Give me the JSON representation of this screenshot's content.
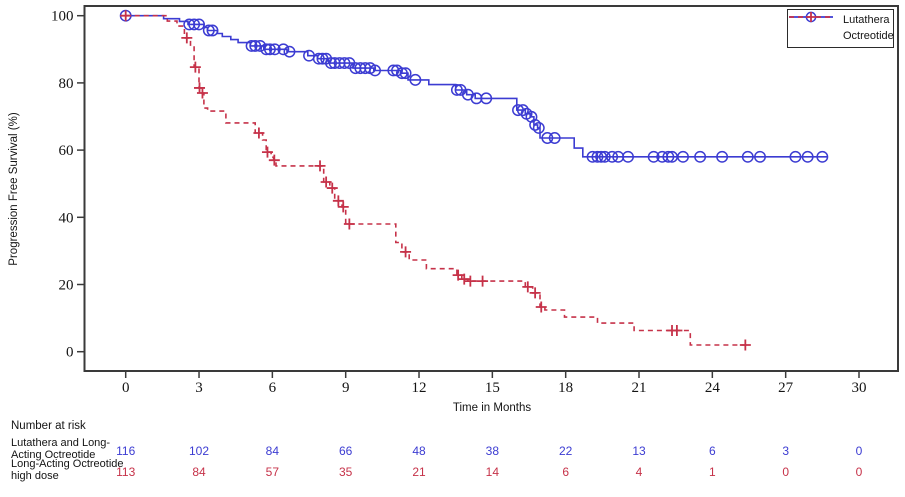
{
  "chart_data": {
    "type": "line",
    "subtype": "kaplan-meier-step",
    "title": "",
    "xlabel": "Time in Months",
    "ylabel": "Progression Free Survival (%)",
    "xlim": [
      0,
      30
    ],
    "ylim": [
      0,
      100
    ],
    "xticks": [
      0,
      3,
      6,
      9,
      12,
      15,
      18,
      21,
      24,
      27,
      30
    ],
    "yticks": [
      0,
      20,
      40,
      60,
      80,
      100
    ],
    "grid": false,
    "legend_position": "top-right",
    "frame_color": "#3a3a3a",
    "text_color": "#141414",
    "series": [
      {
        "name": "Lutathera",
        "color": "#3c3cd2",
        "line_style": "solid",
        "marker": "circle",
        "end_time": 28.7,
        "steps": [
          [
            0,
            100
          ],
          [
            1.55,
            99.1
          ],
          [
            2.2,
            98.3
          ],
          [
            2.55,
            97.4
          ],
          [
            3.2,
            96.5
          ],
          [
            3.35,
            95.6
          ],
          [
            3.75,
            94.7
          ],
          [
            3.95,
            93.8
          ],
          [
            4.3,
            92.9
          ],
          [
            4.6,
            92.0
          ],
          [
            5.1,
            91.0
          ],
          [
            5.65,
            90.0
          ],
          [
            6.6,
            89.3
          ],
          [
            7.45,
            88.1
          ],
          [
            7.85,
            87.2
          ],
          [
            8.3,
            85.9
          ],
          [
            9.3,
            84.4
          ],
          [
            10.15,
            83.7
          ],
          [
            11.25,
            82.9
          ],
          [
            11.55,
            80.9
          ],
          [
            12.4,
            79.5
          ],
          [
            13.5,
            77.9
          ],
          [
            13.95,
            76.5
          ],
          [
            14.3,
            75.4
          ],
          [
            16.0,
            71.9
          ],
          [
            16.35,
            70.8
          ],
          [
            16.55,
            69.9
          ],
          [
            16.7,
            67.5
          ],
          [
            16.85,
            66.6
          ],
          [
            16.95,
            63.6
          ],
          [
            18.35,
            60.6
          ],
          [
            18.7,
            58.0
          ]
        ],
        "censors": [
          [
            0,
            100
          ],
          [
            2.6,
            97.4
          ],
          [
            2.8,
            97.4
          ],
          [
            3.0,
            97.4
          ],
          [
            3.4,
            95.6
          ],
          [
            3.55,
            95.6
          ],
          [
            5.15,
            91.0
          ],
          [
            5.3,
            91.0
          ],
          [
            5.5,
            91.0
          ],
          [
            5.75,
            90.0
          ],
          [
            5.9,
            90.0
          ],
          [
            6.1,
            90.0
          ],
          [
            6.45,
            90.0
          ],
          [
            6.7,
            89.3
          ],
          [
            7.5,
            88.1
          ],
          [
            7.9,
            87.2
          ],
          [
            8.05,
            87.2
          ],
          [
            8.2,
            87.2
          ],
          [
            8.4,
            85.9
          ],
          [
            8.55,
            85.9
          ],
          [
            8.75,
            85.9
          ],
          [
            8.95,
            85.9
          ],
          [
            9.15,
            85.9
          ],
          [
            9.4,
            84.4
          ],
          [
            9.6,
            84.4
          ],
          [
            9.8,
            84.4
          ],
          [
            10.0,
            84.4
          ],
          [
            10.2,
            83.7
          ],
          [
            10.95,
            83.7
          ],
          [
            11.1,
            83.7
          ],
          [
            11.3,
            82.9
          ],
          [
            11.45,
            82.9
          ],
          [
            11.85,
            80.9
          ],
          [
            13.55,
            77.9
          ],
          [
            13.7,
            77.9
          ],
          [
            14.0,
            76.5
          ],
          [
            14.35,
            75.4
          ],
          [
            14.75,
            75.4
          ],
          [
            16.05,
            71.9
          ],
          [
            16.25,
            71.9
          ],
          [
            16.4,
            70.8
          ],
          [
            16.6,
            69.9
          ],
          [
            16.75,
            67.5
          ],
          [
            16.9,
            66.6
          ],
          [
            17.25,
            63.6
          ],
          [
            17.55,
            63.6
          ],
          [
            19.1,
            58.0
          ],
          [
            19.3,
            58.0
          ],
          [
            19.45,
            58.0
          ],
          [
            19.6,
            58.0
          ],
          [
            19.9,
            58.0
          ],
          [
            20.15,
            58.0
          ],
          [
            20.55,
            58.0
          ],
          [
            21.6,
            58.0
          ],
          [
            21.95,
            58.0
          ],
          [
            22.2,
            58.0
          ],
          [
            22.35,
            58.0
          ],
          [
            22.8,
            58.0
          ],
          [
            23.5,
            58.0
          ],
          [
            24.4,
            58.0
          ],
          [
            25.45,
            58.0
          ],
          [
            25.95,
            58.0
          ],
          [
            27.4,
            58.0
          ],
          [
            27.9,
            58.0
          ],
          [
            28.5,
            58.0
          ]
        ]
      },
      {
        "name": "Octreotide",
        "color": "#c63249",
        "line_style": "dashed",
        "marker": "plus",
        "end_time": 25.4,
        "steps": [
          [
            0,
            100
          ],
          [
            1.7,
            98.4
          ],
          [
            2.1,
            96.9
          ],
          [
            2.4,
            93.4
          ],
          [
            2.65,
            91.0
          ],
          [
            2.8,
            84.7
          ],
          [
            3.0,
            78.5
          ],
          [
            3.1,
            77.0
          ],
          [
            3.2,
            72.5
          ],
          [
            3.35,
            71.6
          ],
          [
            4.1,
            68.1
          ],
          [
            5.3,
            65.1
          ],
          [
            5.6,
            63.0
          ],
          [
            5.75,
            59.4
          ],
          [
            5.95,
            57.9
          ],
          [
            6.05,
            57.0
          ],
          [
            6.15,
            55.3
          ],
          [
            8.1,
            50.5
          ],
          [
            8.35,
            48.7
          ],
          [
            8.55,
            44.9
          ],
          [
            8.85,
            43.1
          ],
          [
            9.0,
            38.0
          ],
          [
            11.05,
            32.5
          ],
          [
            11.3,
            29.7
          ],
          [
            11.6,
            27.3
          ],
          [
            12.3,
            24.7
          ],
          [
            13.55,
            22.8
          ],
          [
            13.75,
            21.6
          ],
          [
            14.0,
            21.0
          ],
          [
            16.35,
            19.3
          ],
          [
            16.65,
            17.5
          ],
          [
            16.95,
            13.3
          ],
          [
            17.15,
            12.4
          ],
          [
            17.95,
            10.3
          ],
          [
            19.3,
            8.5
          ],
          [
            20.8,
            6.3
          ],
          [
            23.1,
            2.0
          ]
        ],
        "censors": [
          [
            0,
            100
          ],
          [
            2.5,
            93.4
          ],
          [
            2.85,
            84.7
          ],
          [
            3.02,
            78.5
          ],
          [
            3.14,
            77.0
          ],
          [
            5.45,
            65.1
          ],
          [
            5.8,
            59.4
          ],
          [
            6.08,
            57.0
          ],
          [
            7.95,
            55.3
          ],
          [
            8.2,
            50.5
          ],
          [
            8.45,
            48.7
          ],
          [
            8.7,
            44.9
          ],
          [
            8.9,
            43.1
          ],
          [
            9.15,
            38.0
          ],
          [
            11.45,
            29.7
          ],
          [
            13.6,
            22.8
          ],
          [
            13.85,
            21.6
          ],
          [
            14.1,
            21.0
          ],
          [
            14.6,
            21.0
          ],
          [
            16.45,
            19.3
          ],
          [
            16.75,
            17.5
          ],
          [
            17.0,
            13.3
          ],
          [
            22.35,
            6.3
          ],
          [
            22.55,
            6.3
          ],
          [
            25.35,
            2.0
          ]
        ]
      }
    ],
    "risk_table": {
      "header": "Number at risk",
      "times": [
        0,
        3,
        6,
        9,
        12,
        15,
        18,
        21,
        24,
        27,
        30
      ],
      "rows": [
        {
          "label_lines": [
            "Lutathera and Long-",
            "Acting Octreotide"
          ],
          "color": "#3c3cd2",
          "values": [
            116,
            102,
            84,
            66,
            48,
            38,
            22,
            13,
            6,
            3,
            0
          ]
        },
        {
          "label_lines": [
            "Long-Acting Octreotide",
            "high dose"
          ],
          "color": "#c63249",
          "values": [
            113,
            84,
            57,
            35,
            21,
            14,
            6,
            4,
            1,
            0,
            0
          ]
        }
      ]
    }
  }
}
